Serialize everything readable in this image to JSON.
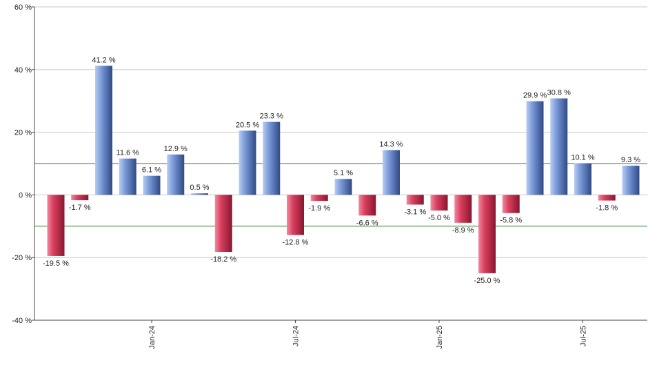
{
  "chart_data": {
    "type": "bar",
    "ylim": [
      -40,
      60
    ],
    "yticks": [
      -40,
      -20,
      0,
      20,
      40,
      60
    ],
    "ytick_suffix": " %",
    "grid": true,
    "reference_lines": [
      10,
      -10
    ],
    "x_tick_labels": [
      {
        "label": "Jan-24",
        "bar_index": 4
      },
      {
        "label": "Jul-24",
        "bar_index": 10
      },
      {
        "label": "Jan-25",
        "bar_index": 16
      },
      {
        "label": "Jul-25",
        "bar_index": 22
      }
    ],
    "values": [
      -19.5,
      -1.7,
      41.2,
      11.6,
      6.1,
      12.9,
      0.5,
      -18.2,
      20.5,
      23.3,
      -12.8,
      -1.9,
      5.1,
      -6.6,
      14.3,
      -3.1,
      -5.0,
      -8.9,
      -25.0,
      -5.8,
      29.9,
      30.8,
      10.1,
      -1.8,
      9.3
    ],
    "data_labels": [
      "-19.5 %",
      "-1.7 %",
      "41.2 %",
      "11.6 %",
      "6.1 %",
      "12.9 %",
      "0.5 %",
      "-18.2 %",
      "20.5 %",
      "23.3 %",
      "-12.8 %",
      "-1.9 %",
      "5.1 %",
      "-6.6 %",
      "14.3 %",
      "-3.1 %",
      "-5.0 %",
      "-8.9 %",
      "-25.0 %",
      "-5.8 %",
      "29.9 %",
      "30.8 %",
      "10.1 %",
      "-1.8 %",
      "9.3 %"
    ],
    "colors": {
      "positive_light": "#b8cdf2",
      "positive_mid": "#7b9ad8",
      "positive_dark": "#2e4a86",
      "negative_light": "#f08aa0",
      "negative_mid": "#d9405e",
      "negative_dark": "#8a1530",
      "grid": "#c8c8c8",
      "axis": "#444444",
      "reference_line": "#2e7d32"
    }
  }
}
